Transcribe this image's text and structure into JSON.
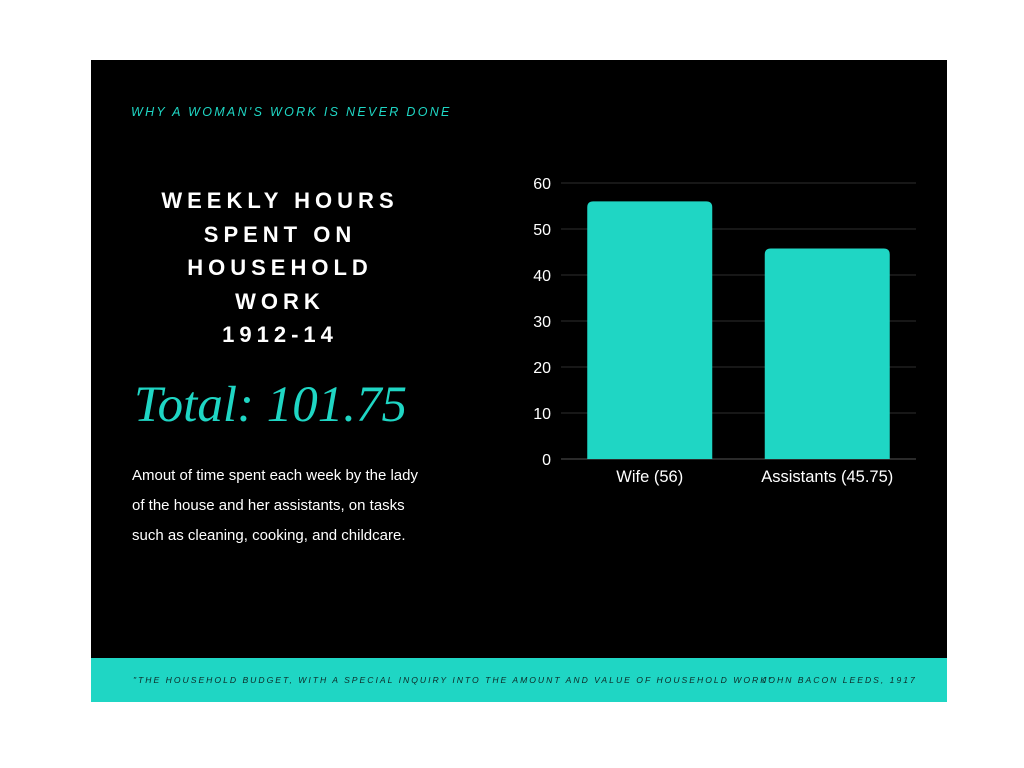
{
  "kicker": "WHY A WOMAN'S WORK IS NEVER DONE",
  "headline": {
    "lines": [
      "WEEKLY HOURS",
      "SPENT ON",
      "HOUSEHOLD",
      "WORK",
      "1912-14"
    ]
  },
  "total": "Total: 101.75",
  "description": "Amout of time spent each week by the lady of the house and her assistants, on tasks such as cleaning, cooking, and childcare.",
  "footer": {
    "quote": "\"THE HOUSEHOLD BUDGET, WITH A SPECIAL INQUIRY INTO THE AMOUNT AND VALUE OF HOUSEHOLD WORK\"",
    "citation": "JOHN BACON LEEDS, 1917"
  },
  "colors": {
    "accent": "#1fd6c4",
    "background": "#000000",
    "text": "#ffffff"
  },
  "chart_data": {
    "type": "bar",
    "categories": [
      "Wife (56)",
      "Assistants (45.75)"
    ],
    "values": [
      56,
      45.75
    ],
    "title": "",
    "xlabel": "",
    "ylabel": "",
    "ylim": [
      0,
      60
    ],
    "yticks": [
      "0",
      "10",
      "20",
      "30",
      "40",
      "50",
      "60"
    ],
    "grid": true,
    "legend": "none"
  }
}
